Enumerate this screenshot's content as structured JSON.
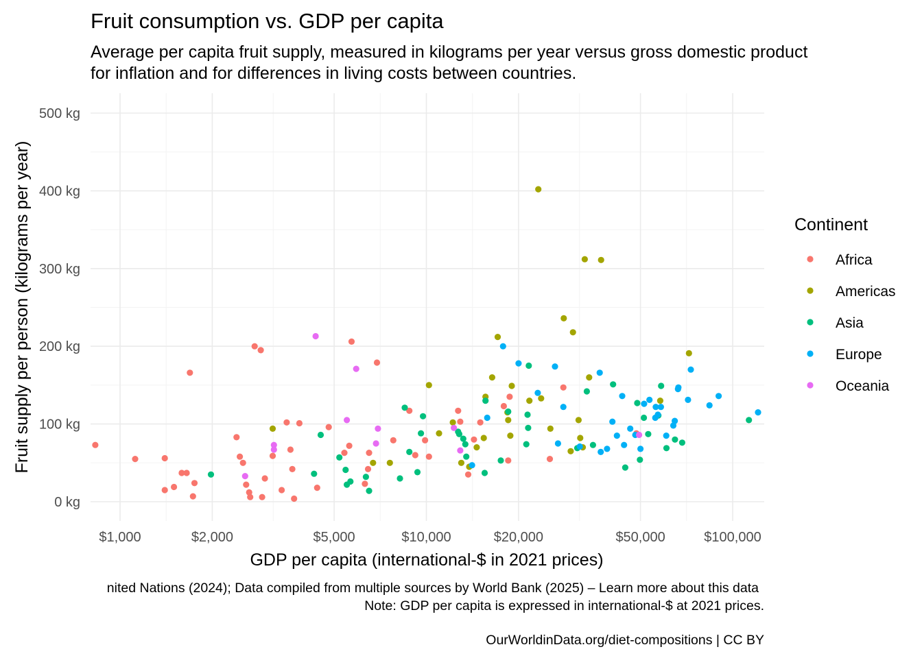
{
  "chart_data": {
    "type": "scatter",
    "title": "Fruit consumption vs. GDP per capita",
    "subtitle_lines": [
      "Average per capita fruit supply, measured in kilograms per year versus gross domestic product",
      "for inflation and for differences in living costs between countries."
    ],
    "xlabel": "GDP per capita (international-$ in 2021 prices)",
    "ylabel": "Fruit supply per person (kilograms per year)",
    "x_scale": "log10",
    "xlim": [
      800,
      125000
    ],
    "ylim": [
      0,
      520
    ],
    "grid": true,
    "legend_position": "right",
    "x_ticks": [
      {
        "value": 1000,
        "label": "$1,000"
      },
      {
        "value": 2000,
        "label": "$2,000"
      },
      {
        "value": 5000,
        "label": "$5,000"
      },
      {
        "value": 10000,
        "label": "$10,000"
      },
      {
        "value": 20000,
        "label": "$20,000"
      },
      {
        "value": 50000,
        "label": "$50,000"
      },
      {
        "value": 100000,
        "label": "$100,000"
      }
    ],
    "y_ticks": [
      {
        "value": 0,
        "label": "0 kg"
      },
      {
        "value": 100,
        "label": "100 kg"
      },
      {
        "value": 200,
        "label": "200 kg"
      },
      {
        "value": 300,
        "label": "300 kg"
      },
      {
        "value": 400,
        "label": "400 kg"
      },
      {
        "value": 500,
        "label": "500 kg"
      }
    ],
    "legend_title": "Continent",
    "series": [
      {
        "name": "Africa",
        "color": "#F8766D",
        "points": [
          [
            830,
            73
          ],
          [
            1120,
            55
          ],
          [
            1400,
            56
          ],
          [
            1400,
            15
          ],
          [
            1500,
            19
          ],
          [
            1590,
            37
          ],
          [
            1650,
            37
          ],
          [
            1690,
            166
          ],
          [
            1730,
            7
          ],
          [
            1750,
            24
          ],
          [
            2400,
            83
          ],
          [
            2460,
            58
          ],
          [
            2520,
            50
          ],
          [
            2580,
            22
          ],
          [
            2640,
            12
          ],
          [
            2660,
            6
          ],
          [
            2750,
            200
          ],
          [
            2880,
            195
          ],
          [
            2910,
            6
          ],
          [
            2970,
            30
          ],
          [
            3150,
            59
          ],
          [
            3370,
            15
          ],
          [
            3500,
            102
          ],
          [
            3600,
            67
          ],
          [
            3650,
            42
          ],
          [
            3700,
            4
          ],
          [
            3850,
            101
          ],
          [
            4400,
            18
          ],
          [
            4800,
            96
          ],
          [
            5400,
            63
          ],
          [
            5600,
            72
          ],
          [
            5700,
            206
          ],
          [
            6300,
            23
          ],
          [
            6450,
            42
          ],
          [
            6500,
            63
          ],
          [
            6900,
            179
          ],
          [
            7800,
            79
          ],
          [
            8800,
            117
          ],
          [
            9200,
            60
          ],
          [
            9900,
            79
          ],
          [
            10200,
            58
          ],
          [
            12700,
            117
          ],
          [
            12900,
            103
          ],
          [
            13700,
            35
          ],
          [
            14300,
            80
          ],
          [
            15000,
            102
          ],
          [
            17900,
            123
          ],
          [
            18700,
            135
          ],
          [
            18500,
            53
          ],
          [
            25300,
            55
          ],
          [
            28000,
            147
          ],
          [
            48500,
            88
          ]
        ]
      },
      {
        "name": "Americas",
        "color": "#A3A500",
        "points": [
          [
            3150,
            94
          ],
          [
            6700,
            50
          ],
          [
            7600,
            50
          ],
          [
            10200,
            150
          ],
          [
            11000,
            88
          ],
          [
            12200,
            102
          ],
          [
            13000,
            50
          ],
          [
            13800,
            45
          ],
          [
            14600,
            70
          ],
          [
            15400,
            82
          ],
          [
            15600,
            135
          ],
          [
            16400,
            160
          ],
          [
            17100,
            212
          ],
          [
            18400,
            115
          ],
          [
            18500,
            105
          ],
          [
            18800,
            85
          ],
          [
            19000,
            149
          ],
          [
            21700,
            130
          ],
          [
            23200,
            402
          ],
          [
            23700,
            133
          ],
          [
            25400,
            94
          ],
          [
            28100,
            236
          ],
          [
            29600,
            65
          ],
          [
            30100,
            218
          ],
          [
            31400,
            105
          ],
          [
            31800,
            82
          ],
          [
            32400,
            70
          ],
          [
            32900,
            312
          ],
          [
            34000,
            160
          ],
          [
            37200,
            311
          ],
          [
            58000,
            130
          ],
          [
            72000,
            191
          ]
        ]
      },
      {
        "name": "Asia",
        "color": "#00BF7D",
        "points": [
          [
            1980,
            35
          ],
          [
            4300,
            36
          ],
          [
            4520,
            86
          ],
          [
            5200,
            57
          ],
          [
            5450,
            41
          ],
          [
            5500,
            22
          ],
          [
            5650,
            26
          ],
          [
            6350,
            32
          ],
          [
            6500,
            14
          ],
          [
            8200,
            30
          ],
          [
            8500,
            121
          ],
          [
            8800,
            64
          ],
          [
            9350,
            38
          ],
          [
            9600,
            88
          ],
          [
            9750,
            110
          ],
          [
            12700,
            90
          ],
          [
            12800,
            87
          ],
          [
            13200,
            81
          ],
          [
            13400,
            74
          ],
          [
            13500,
            58
          ],
          [
            15500,
            37
          ],
          [
            15600,
            130
          ],
          [
            17500,
            53
          ],
          [
            18500,
            116
          ],
          [
            21200,
            74
          ],
          [
            21400,
            112
          ],
          [
            21500,
            95
          ],
          [
            21600,
            175
          ],
          [
            31100,
            69
          ],
          [
            33400,
            142
          ],
          [
            35000,
            73
          ],
          [
            40700,
            151
          ],
          [
            44600,
            44
          ],
          [
            48800,
            127
          ],
          [
            49800,
            54
          ],
          [
            51300,
            108
          ],
          [
            53000,
            87
          ],
          [
            57200,
            111
          ],
          [
            58400,
            149
          ],
          [
            60800,
            69
          ],
          [
            64800,
            80
          ],
          [
            68400,
            76
          ],
          [
            113000,
            105
          ]
        ]
      },
      {
        "name": "Europe",
        "color": "#00B0F6",
        "points": [
          [
            14100,
            47
          ],
          [
            15800,
            108
          ],
          [
            17800,
            200
          ],
          [
            20000,
            178
          ],
          [
            23100,
            140
          ],
          [
            26300,
            174
          ],
          [
            28000,
            122
          ],
          [
            26900,
            75
          ],
          [
            31700,
            71
          ],
          [
            36800,
            166
          ],
          [
            37100,
            64
          ],
          [
            38900,
            68
          ],
          [
            40500,
            103
          ],
          [
            41900,
            85
          ],
          [
            43600,
            136
          ],
          [
            44200,
            73
          ],
          [
            46300,
            94
          ],
          [
            48100,
            86
          ],
          [
            50000,
            68
          ],
          [
            51400,
            126
          ],
          [
            53500,
            131
          ],
          [
            55900,
            108
          ],
          [
            56100,
            122
          ],
          [
            57000,
            112
          ],
          [
            58300,
            122
          ],
          [
            60700,
            85
          ],
          [
            64000,
            98
          ],
          [
            64700,
            104
          ],
          [
            66300,
            145
          ],
          [
            66500,
            147
          ],
          [
            71500,
            131
          ],
          [
            73000,
            170
          ],
          [
            84000,
            124
          ],
          [
            90000,
            136
          ],
          [
            121000,
            115
          ]
        ]
      },
      {
        "name": "Oceania",
        "color": "#E76BF3",
        "points": [
          [
            2560,
            33
          ],
          [
            3180,
            73
          ],
          [
            3180,
            67
          ],
          [
            4350,
            213
          ],
          [
            5500,
            105
          ],
          [
            5900,
            171
          ],
          [
            6850,
            75
          ],
          [
            6950,
            94
          ],
          [
            12300,
            95
          ],
          [
            12900,
            66
          ],
          [
            49500,
            86
          ]
        ]
      }
    ],
    "caption_lines": [
      "nited Nations (2024); Data compiled from multiple sources by World Bank (2025) – Learn more about this data",
      "Note: GDP per capita is expressed in international-$ at 2021 prices.",
      "OurWorldinData.org/diet-compositions | CC BY"
    ]
  }
}
